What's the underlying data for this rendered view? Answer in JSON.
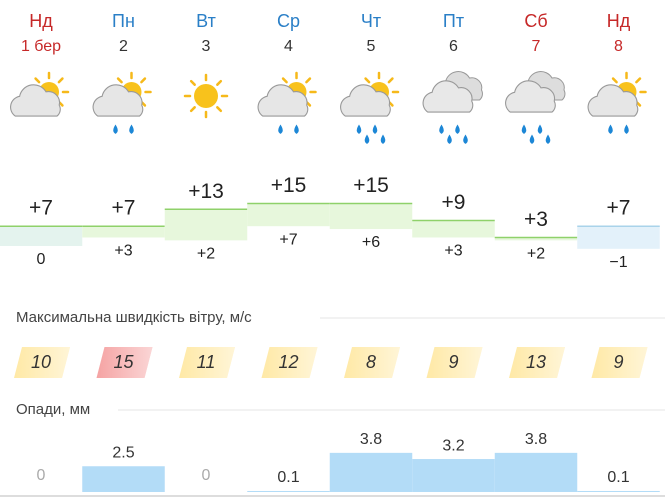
{
  "days": [
    "Нд",
    "Пн",
    "Вт",
    "Ср",
    "Чт",
    "Пт",
    "Сб",
    "Нд"
  ],
  "dates": [
    "1 бер",
    "2",
    "3",
    "4",
    "5",
    "6",
    "7",
    "8"
  ],
  "weekend": [
    true,
    false,
    false,
    false,
    false,
    false,
    true,
    true
  ],
  "temperature": {
    "max": [
      7,
      7,
      13,
      15,
      15,
      9,
      3,
      7
    ],
    "max_labels": [
      "+7",
      "+7",
      "+13",
      "+15",
      "+15",
      "+9",
      "+3",
      "+7"
    ],
    "min": [
      0,
      3,
      2,
      7,
      6,
      3,
      2,
      -1
    ],
    "min_labels": [
      "0",
      "+3",
      "+2",
      "+7",
      "+6",
      "+3",
      "+2",
      "−1"
    ]
  },
  "wind": {
    "title": "Максимальна швидкість вітру, м/с",
    "values": [
      10,
      15,
      11,
      12,
      8,
      9,
      13,
      9
    ],
    "colors": [
      "#ffe9a6",
      "#f5a3a3",
      "#ffe9a6",
      "#ffe9a6",
      "#ffe9a6",
      "#ffe9a6",
      "#ffe9a6",
      "#ffe9a6"
    ]
  },
  "precipitation": {
    "title": "Опади, мм",
    "values": [
      0,
      2.5,
      0,
      0.1,
      3.8,
      3.2,
      3.8,
      0.1
    ]
  }
}
